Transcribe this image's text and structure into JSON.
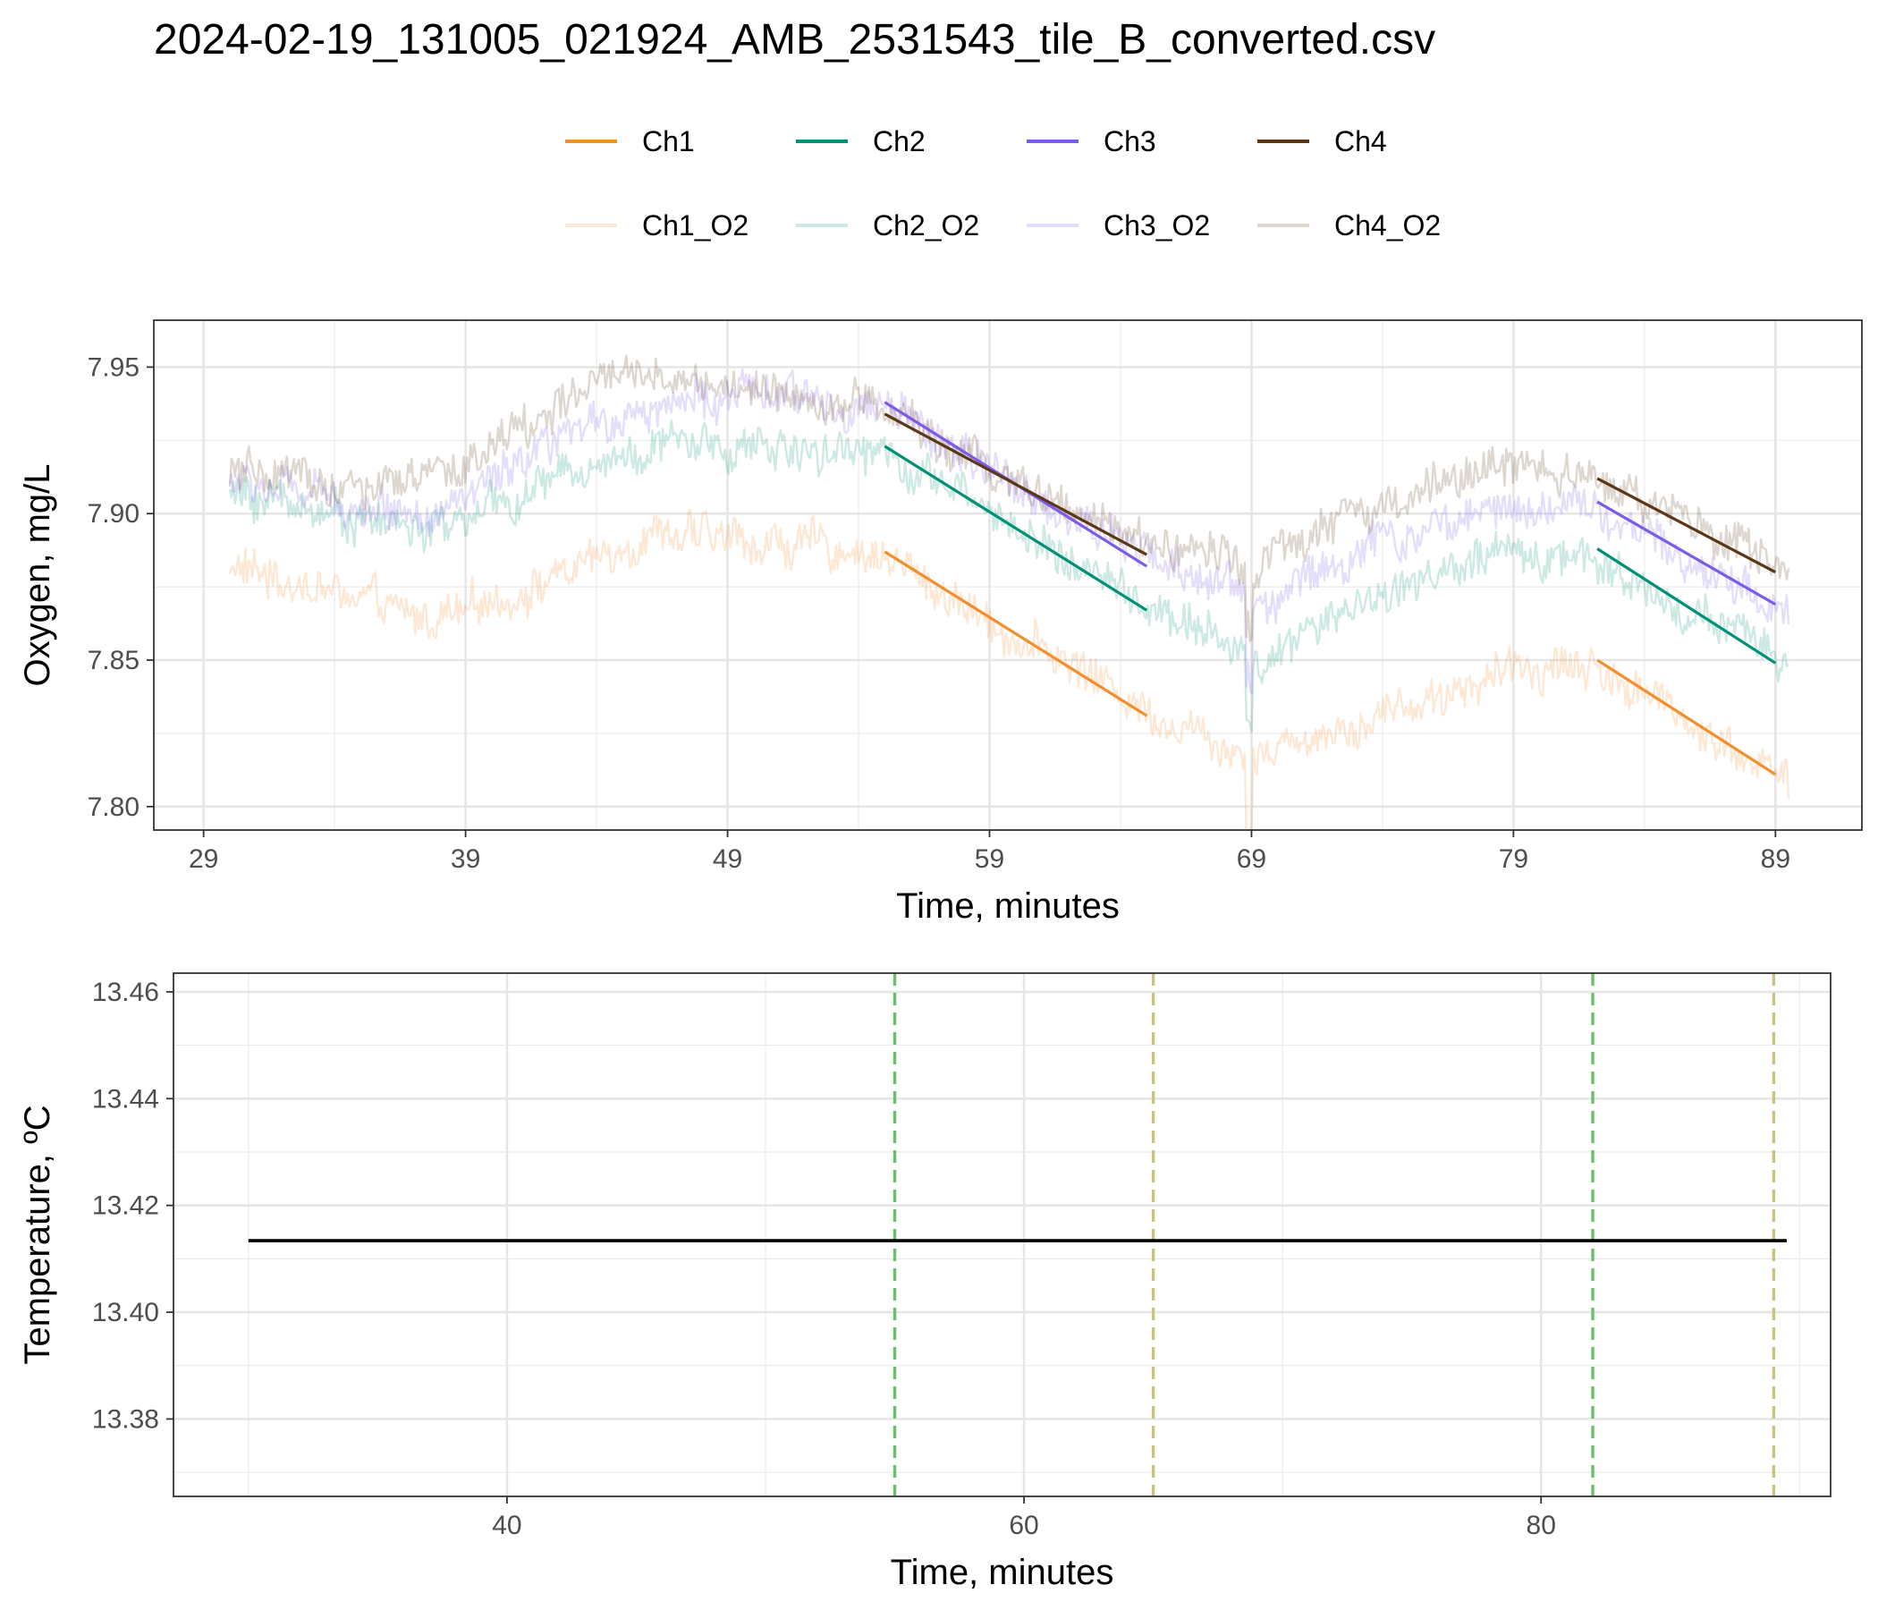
{
  "title": "2024-02-19_131005_021924_AMB_2531543_tile_B_converted.csv",
  "legend": {
    "entries": [
      {
        "label": "Ch1",
        "color": "#f28e2b",
        "opacity": 1
      },
      {
        "label": "Ch2",
        "color": "#009076",
        "opacity": 1
      },
      {
        "label": "Ch3",
        "color": "#7b5be8",
        "opacity": 1
      },
      {
        "label": "Ch4",
        "color": "#5c3716",
        "opacity": 1
      },
      {
        "label": "Ch1_O2",
        "color": "#f28e2b",
        "opacity": 0.2
      },
      {
        "label": "Ch2_O2",
        "color": "#009076",
        "opacity": 0.2
      },
      {
        "label": "Ch3_O2",
        "color": "#7b5be8",
        "opacity": 0.2
      },
      {
        "label": "Ch4_O2",
        "color": "#5c3716",
        "opacity": 0.2
      }
    ]
  },
  "chart_data": [
    {
      "type": "line",
      "xlabel": "Time, minutes",
      "ylabel": "Oxygen, mg/L",
      "xlim": [
        27.1,
        92.3
      ],
      "ylim": [
        7.792,
        7.966
      ],
      "x_ticks": [
        29,
        39,
        49,
        59,
        69,
        79,
        89
      ],
      "y_ticks": [
        7.8,
        7.85,
        7.9,
        7.95
      ],
      "y_tick_labels": [
        "7.80",
        "7.85",
        "7.90",
        "7.95"
      ],
      "grid": true,
      "legend_position": "top",
      "raw_series": [
        {
          "name": "Ch1_O2",
          "color": "#f28e2b",
          "opacity": 0.2,
          "x": [
            30,
            34,
            37,
            39,
            42,
            44,
            46,
            49,
            52,
            55,
            57,
            60,
            63,
            65,
            67,
            69,
            72,
            75,
            79,
            81,
            82,
            85,
            87,
            89.5
          ],
          "y": [
            7.882,
            7.873,
            7.864,
            7.866,
            7.877,
            7.884,
            7.894,
            7.891,
            7.889,
            7.886,
            7.874,
            7.858,
            7.845,
            7.833,
            7.826,
            7.818,
            7.826,
            7.835,
            7.846,
            7.85,
            7.847,
            7.834,
            7.822,
            7.809
          ]
        },
        {
          "name": "Ch2_O2",
          "color": "#009076",
          "opacity": 0.2,
          "x": [
            30,
            32,
            35,
            38,
            41,
            44,
            47,
            50,
            53,
            55,
            58,
            61,
            64,
            66,
            68,
            69,
            72,
            75,
            78,
            80,
            82,
            84,
            87,
            89.5
          ],
          "y": [
            7.906,
            7.905,
            7.898,
            7.894,
            7.905,
            7.918,
            7.924,
            7.922,
            7.923,
            7.921,
            7.906,
            7.89,
            7.874,
            7.863,
            7.857,
            7.846,
            7.865,
            7.876,
            7.884,
            7.886,
            7.886,
            7.874,
            7.861,
            7.848
          ]
        },
        {
          "name": "Ch3_O2",
          "color": "#7b5be8",
          "opacity": 0.2,
          "x": [
            30,
            32,
            35,
            38,
            41,
            44,
            47,
            50,
            53,
            55,
            58,
            61,
            64,
            66,
            68,
            69,
            72,
            75,
            78,
            80,
            82,
            84,
            87,
            89.5
          ],
          "y": [
            7.911,
            7.908,
            7.903,
            7.901,
            7.914,
            7.931,
            7.939,
            7.94,
            7.938,
            7.936,
            7.92,
            7.904,
            7.89,
            7.88,
            7.878,
            7.868,
            7.883,
            7.893,
            7.901,
            7.904,
            7.903,
            7.891,
            7.879,
            7.866
          ]
        },
        {
          "name": "Ch4_O2",
          "color": "#5c3716",
          "opacity": 0.2,
          "x": [
            30,
            32,
            35,
            38,
            41,
            44,
            46,
            49,
            52,
            55,
            58,
            61,
            64,
            66,
            68,
            69,
            72,
            75,
            78,
            80,
            82,
            84,
            87,
            89.5
          ],
          "y": [
            7.913,
            7.912,
            7.908,
            7.912,
            7.928,
            7.944,
            7.948,
            7.943,
            7.94,
            7.936,
            7.92,
            7.905,
            7.893,
            7.888,
            7.888,
            7.883,
            7.895,
            7.905,
            7.915,
            7.917,
            7.914,
            7.903,
            7.891,
            7.88
          ]
        }
      ],
      "fit_series": [
        {
          "name": "Ch1",
          "color": "#f28e2b",
          "x": [
            55,
            65
          ],
          "y": [
            7.887,
            7.831
          ]
        },
        {
          "name": "Ch2",
          "color": "#009076",
          "x": [
            55,
            65
          ],
          "y": [
            7.923,
            7.867
          ]
        },
        {
          "name": "Ch3",
          "color": "#7b5be8",
          "x": [
            55,
            65
          ],
          "y": [
            7.938,
            7.882
          ]
        },
        {
          "name": "Ch4",
          "color": "#5c3716",
          "x": [
            55,
            65
          ],
          "y": [
            7.934,
            7.886
          ]
        },
        {
          "name": "Ch1",
          "color": "#f28e2b",
          "x": [
            82.2,
            89
          ],
          "y": [
            7.85,
            7.811
          ]
        },
        {
          "name": "Ch2",
          "color": "#009076",
          "x": [
            82.2,
            89
          ],
          "y": [
            7.888,
            7.849
          ]
        },
        {
          "name": "Ch3",
          "color": "#7b5be8",
          "x": [
            82.2,
            89
          ],
          "y": [
            7.904,
            7.869
          ]
        },
        {
          "name": "Ch4",
          "color": "#5c3716",
          "x": [
            82.2,
            89
          ],
          "y": [
            7.912,
            7.88
          ]
        }
      ]
    },
    {
      "type": "line",
      "xlabel": "Time, minutes",
      "ylabel": "Temperature, ºC",
      "xlim": [
        27.1,
        91.2
      ],
      "ylim": [
        13.3655,
        13.4635
      ],
      "x_ticks": [
        40,
        60,
        80
      ],
      "y_ticks": [
        13.38,
        13.4,
        13.42,
        13.44,
        13.46
      ],
      "y_tick_labels": [
        "13.38",
        "13.40",
        "13.42",
        "13.44",
        "13.46"
      ],
      "grid": true,
      "series": [
        {
          "name": "Temperature",
          "color": "#000000",
          "x": [
            30,
            89.5
          ],
          "y": [
            13.4134,
            13.4134
          ]
        }
      ],
      "vlines": [
        {
          "x": 55,
          "color": "#6dbf67",
          "kind": "start"
        },
        {
          "x": 65,
          "color": "#c8c480",
          "kind": "end"
        },
        {
          "x": 82,
          "color": "#6dbf67",
          "kind": "start"
        },
        {
          "x": 89,
          "color": "#c8c480",
          "kind": "end"
        }
      ]
    }
  ]
}
